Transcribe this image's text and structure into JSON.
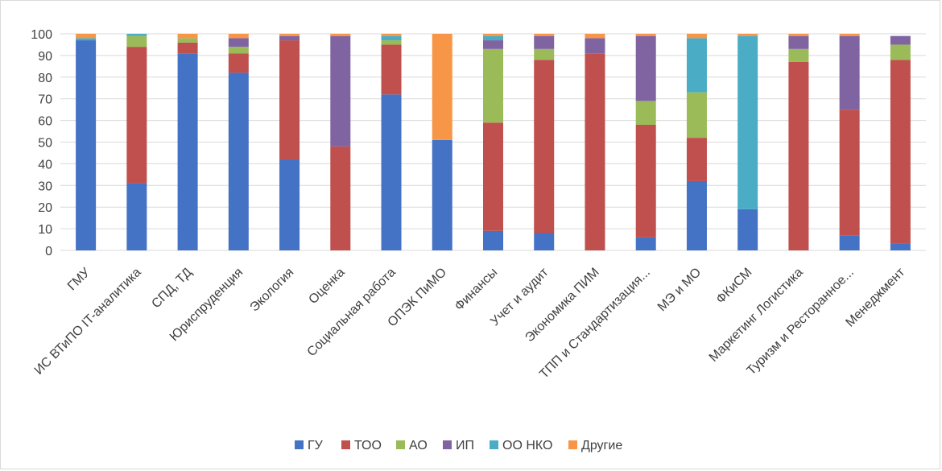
{
  "chart_data": {
    "type": "bar",
    "stacked": true,
    "categories": [
      "ГМУ",
      "ИС ВТиПО IT-аналитика",
      "СПД, ТД",
      "Юриспруденция",
      "Экология",
      "Оценка",
      "Социальная работа",
      "ОПЭК ПиМО",
      "Финансы",
      "Учет и аудит",
      "Экономика ПИМ",
      "ТПП и Стандартизация...",
      "МЭ и МО",
      "ФКиСМ",
      "Маркетинг Логистика",
      "Туризм и Ресторанное...",
      "Менеджмент"
    ],
    "series": [
      {
        "name": "ГУ",
        "color": "#4472C4",
        "values": [
          97,
          31,
          91,
          82,
          42,
          0,
          72,
          51,
          9,
          8,
          0,
          6,
          32,
          19,
          0,
          7,
          3
        ]
      },
      {
        "name": "ТОО",
        "color": "#C0504D",
        "values": [
          0,
          63,
          5,
          9,
          55,
          48,
          23,
          0,
          50,
          80,
          91,
          52,
          20,
          0,
          87,
          58,
          85
        ]
      },
      {
        "name": "АО",
        "color": "#9BBB59",
        "values": [
          0,
          5,
          2,
          3,
          0,
          0,
          2,
          0,
          34,
          5,
          0,
          11,
          21,
          0,
          6,
          0,
          7
        ]
      },
      {
        "name": "ИП",
        "color": "#8064A2",
        "values": [
          0,
          0,
          0,
          4,
          2,
          51,
          0,
          0,
          4,
          6,
          7,
          30,
          0,
          0,
          6,
          34,
          4
        ]
      },
      {
        "name": "ОО НКО",
        "color": "#4BACC6",
        "values": [
          1,
          1,
          0,
          0,
          0,
          0,
          2,
          0,
          2,
          0,
          0,
          0,
          25,
          80,
          0,
          0,
          0
        ]
      },
      {
        "name": "Другие",
        "color": "#F79646",
        "values": [
          2,
          0,
          2,
          2,
          1,
          1,
          1,
          49,
          1,
          1,
          2,
          1,
          2,
          1,
          1,
          1,
          0
        ]
      }
    ],
    "ylim": [
      0,
      100
    ],
    "yticks": [
      0,
      10,
      20,
      30,
      40,
      50,
      60,
      70,
      80,
      90,
      100
    ],
    "grid": true,
    "legend": "bottom"
  }
}
